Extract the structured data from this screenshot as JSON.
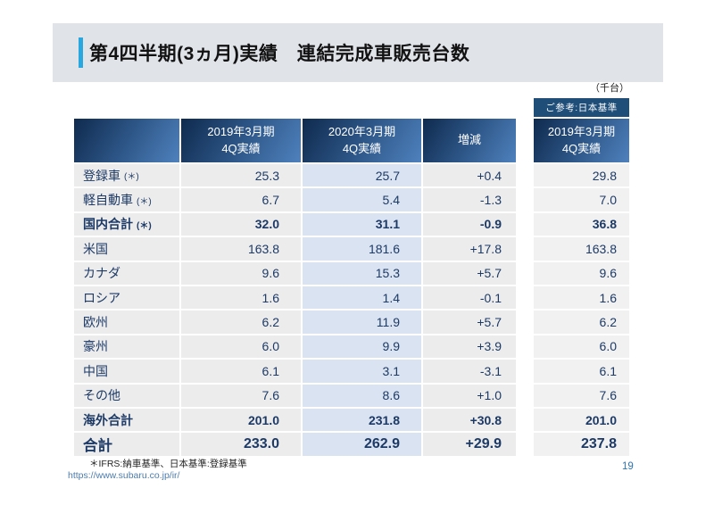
{
  "slide": {
    "title": "第4四半期(3ヵ月)実績　連結完成車販売台数",
    "unit_note": "（千台）",
    "footnote": "＊IFRS:納車基準、日本基準:登録基準",
    "url": "https://www.subaru.co.jp/ir/",
    "page_number": "19"
  },
  "colors": {
    "accent_bar": "#2ba7df",
    "title_band_bg": "#e0e3e8",
    "header_gradient_start": "#0f2a4e",
    "header_gradient_end": "#4f81bd",
    "ref_band_bg": "#1f4e79",
    "row_bg": "#ececec",
    "highlight_col_bg": "#dae3f1",
    "ref_col_bg": "#f1f1f1",
    "text_navy": "#1d3a66"
  },
  "main_table": {
    "col_2019": {
      "line1": "2019年3月期",
      "line2": "4Q実績"
    },
    "col_2020": {
      "line1": "2020年3月期",
      "line2": "4Q実績"
    },
    "col_diff": {
      "label": "増減"
    },
    "rows": [
      {
        "label": "登録車",
        "star": "(＊)",
        "emphasis": "normal",
        "v2019": "25.3",
        "v2020": "25.7",
        "diff": "+0.4",
        "ref": "29.8"
      },
      {
        "label": "軽自動車",
        "star": "(＊)",
        "emphasis": "normal",
        "v2019": "6.7",
        "v2020": "5.4",
        "diff": "-1.3",
        "ref": "7.0"
      },
      {
        "label": "国内合計",
        "star": "(＊)",
        "emphasis": "bold",
        "v2019": "32.0",
        "v2020": "31.1",
        "diff": "-0.9",
        "ref": "36.8"
      },
      {
        "label": "米国",
        "star": "",
        "emphasis": "normal",
        "v2019": "163.8",
        "v2020": "181.6",
        "diff": "+17.8",
        "ref": "163.8"
      },
      {
        "label": "カナダ",
        "star": "",
        "emphasis": "normal",
        "v2019": "9.6",
        "v2020": "15.3",
        "diff": "+5.7",
        "ref": "9.6"
      },
      {
        "label": "ロシア",
        "star": "",
        "emphasis": "normal",
        "v2019": "1.6",
        "v2020": "1.4",
        "diff": "-0.1",
        "ref": "1.6"
      },
      {
        "label": "欧州",
        "star": "",
        "emphasis": "normal",
        "v2019": "6.2",
        "v2020": "11.9",
        "diff": "+5.7",
        "ref": "6.2"
      },
      {
        "label": "豪州",
        "star": "",
        "emphasis": "normal",
        "v2019": "6.0",
        "v2020": "9.9",
        "diff": "+3.9",
        "ref": "6.0"
      },
      {
        "label": "中国",
        "star": "",
        "emphasis": "normal",
        "v2019": "6.1",
        "v2020": "3.1",
        "diff": "-3.1",
        "ref": "6.1"
      },
      {
        "label": "その他",
        "star": "",
        "emphasis": "normal",
        "v2019": "7.6",
        "v2020": "8.6",
        "diff": "+1.0",
        "ref": "7.6"
      },
      {
        "label": "海外合計",
        "star": "",
        "emphasis": "bold",
        "v2019": "201.0",
        "v2020": "231.8",
        "diff": "+30.8",
        "ref": "201.0"
      },
      {
        "label": "合計",
        "star": "",
        "emphasis": "total",
        "v2019": "233.0",
        "v2020": "262.9",
        "diff": "+29.9",
        "ref": "237.8"
      }
    ]
  },
  "ref_table": {
    "band_label": "ご参考:日本基準",
    "header": {
      "line1": "2019年3月期",
      "line2": "4Q実績"
    }
  }
}
